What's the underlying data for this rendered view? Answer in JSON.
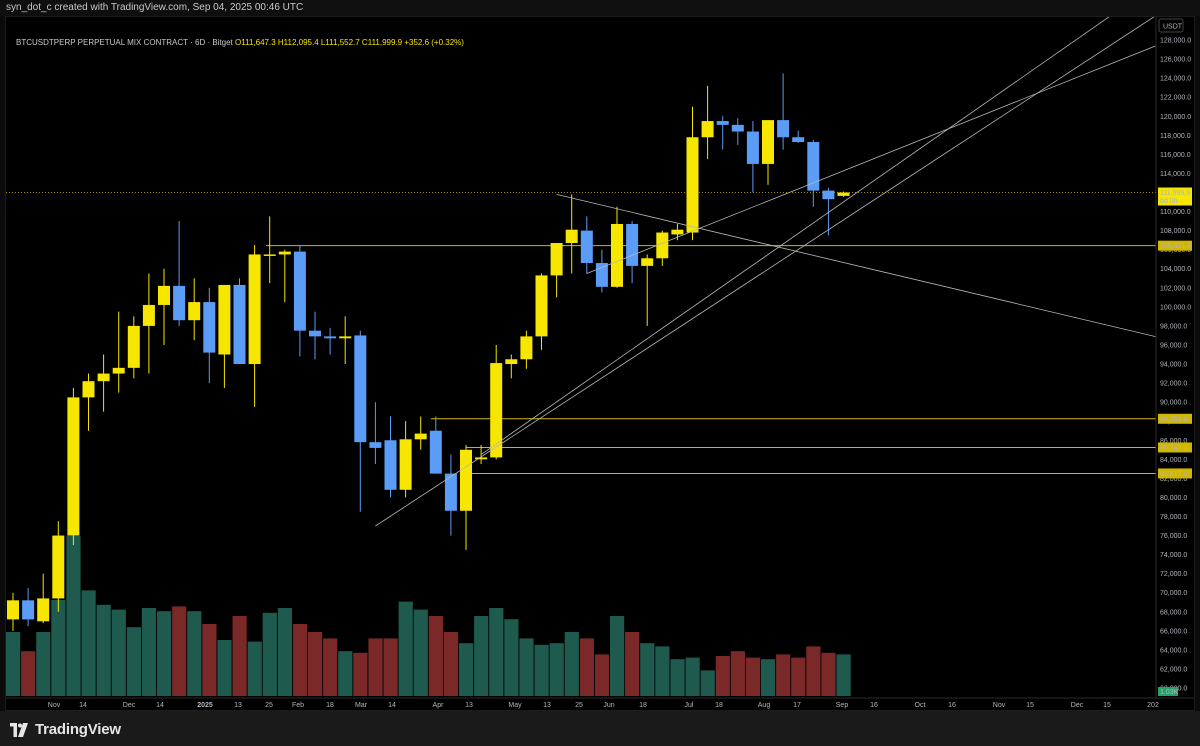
{
  "header": {
    "created_by": "syn_dot_c created with TradingView.com, Sep 04, 2025 00:46 UTC"
  },
  "legend": {
    "symbol": "BTCUSDTPERP PERPETUAL MIX CONTRACT · 6D · Bitget",
    "ohlc": "O111,647.3 H112,095.4 L111,552.7 C111,999.9 +352.6 (+0.32%)"
  },
  "footer": {
    "brand": "TradingView"
  },
  "colors": {
    "up": "#f6e600",
    "down": "#5b9cf6",
    "vol_up": "#1e5b4e",
    "vol_down": "#7a2828",
    "level": "#d2b700",
    "trend": "#b8b8b8"
  },
  "chart_data": {
    "type": "candlestick",
    "symbol": "BTCUSDTPERP",
    "interval": "6D",
    "exchange": "Bitget",
    "currency": "USDT",
    "ylim": [
      60000,
      130000
    ],
    "y_ticks": [
      60000,
      62000,
      64000,
      66000,
      68000,
      70000,
      72000,
      74000,
      76000,
      78000,
      80000,
      82000,
      84000,
      86000,
      88000,
      90000,
      92000,
      94000,
      96000,
      98000,
      100000,
      102000,
      104000,
      106000,
      108000,
      110000,
      112000,
      114000,
      116000,
      118000,
      120000,
      122000,
      124000,
      126000,
      128000
    ],
    "y_tick_labels": [
      "60,000.0",
      "62,000.0",
      "64,000.0",
      "66,000.0",
      "68,000.0",
      "70,000.0",
      "72,000.0",
      "74,000.0",
      "76,000.0",
      "78,000.0",
      "80,000.0",
      "82,000.0",
      "84,000.0",
      "86,000.0",
      "88,000.0",
      "90,000.0",
      "92,000.0",
      "94,000.0",
      "96,000.0",
      "98,000.0",
      "100,000.0",
      "102,000.0",
      "104,000.0",
      "106,000.0",
      "108,000.0",
      "110,000.0",
      "112,000.0",
      "114,000.0",
      "116,000.0",
      "118,000.0",
      "120,000.0",
      "122,000.0",
      "124,000.0",
      "126,000.0",
      "128,000.0"
    ],
    "x_labels": [
      "Nov",
      "14",
      "Dec",
      "14",
      "2025",
      "13",
      "25",
      "Feb",
      "18",
      "Mar",
      "14",
      "Apr",
      "13",
      "May",
      "13",
      "25",
      "Jun",
      "18",
      "Jul",
      "18",
      "Aug",
      "17",
      "Sep",
      "16",
      "Oct",
      "16",
      "Nov",
      "15",
      "Dec",
      "15",
      "202"
    ],
    "candles": [
      {
        "o": 67200,
        "h": 70000,
        "l": 66000,
        "c": 69200
      },
      {
        "o": 69200,
        "h": 70500,
        "l": 66500,
        "c": 67200
      },
      {
        "o": 67000,
        "h": 72000,
        "l": 66800,
        "c": 69400
      },
      {
        "o": 69400,
        "h": 77500,
        "l": 68000,
        "c": 76000
      },
      {
        "o": 76000,
        "h": 91500,
        "l": 75000,
        "c": 90500
      },
      {
        "o": 90500,
        "h": 93000,
        "l": 87000,
        "c": 92200
      },
      {
        "o": 92200,
        "h": 95000,
        "l": 89000,
        "c": 93000
      },
      {
        "o": 93000,
        "h": 99500,
        "l": 91000,
        "c": 93600
      },
      {
        "o": 93600,
        "h": 99000,
        "l": 92500,
        "c": 98000
      },
      {
        "o": 98000,
        "h": 103500,
        "l": 93000,
        "c": 100200
      },
      {
        "o": 100200,
        "h": 104000,
        "l": 96000,
        "c": 102200
      },
      {
        "o": 102200,
        "h": 109000,
        "l": 98000,
        "c": 98600
      },
      {
        "o": 98600,
        "h": 103000,
        "l": 96500,
        "c": 100500
      },
      {
        "o": 100500,
        "h": 102000,
        "l": 92000,
        "c": 95200
      },
      {
        "o": 95000,
        "h": 102000,
        "l": 91500,
        "c": 102300
      },
      {
        "o": 102300,
        "h": 103000,
        "l": 94000,
        "c": 94000
      },
      {
        "o": 94000,
        "h": 106500,
        "l": 89500,
        "c": 105500
      },
      {
        "o": 105500,
        "h": 109500,
        "l": 102500,
        "c": 105500
      },
      {
        "o": 105500,
        "h": 106000,
        "l": 100500,
        "c": 105800
      },
      {
        "o": 105800,
        "h": 106500,
        "l": 94800,
        "c": 97500
      },
      {
        "o": 97500,
        "h": 99500,
        "l": 94500,
        "c": 96900
      },
      {
        "o": 96900,
        "h": 97800,
        "l": 95000,
        "c": 96700
      },
      {
        "o": 96700,
        "h": 99000,
        "l": 94000,
        "c": 96900
      },
      {
        "o": 97000,
        "h": 97500,
        "l": 78500,
        "c": 85800
      },
      {
        "o": 85800,
        "h": 90000,
        "l": 83500,
        "c": 85200
      },
      {
        "o": 86000,
        "h": 88500,
        "l": 80000,
        "c": 80800
      },
      {
        "o": 80800,
        "h": 88000,
        "l": 80000,
        "c": 86100
      },
      {
        "o": 86100,
        "h": 88500,
        "l": 85000,
        "c": 86700
      },
      {
        "o": 87000,
        "h": 88500,
        "l": 82500,
        "c": 82500
      },
      {
        "o": 82500,
        "h": 84500,
        "l": 76000,
        "c": 78600
      },
      {
        "o": 78600,
        "h": 85500,
        "l": 74500,
        "c": 85000
      },
      {
        "o": 84000,
        "h": 85500,
        "l": 83500,
        "c": 84200
      },
      {
        "o": 84200,
        "h": 96000,
        "l": 84000,
        "c": 94100
      },
      {
        "o": 94000,
        "h": 95000,
        "l": 92500,
        "c": 94500
      },
      {
        "o": 94500,
        "h": 97500,
        "l": 93500,
        "c": 96900
      },
      {
        "o": 96900,
        "h": 103500,
        "l": 95500,
        "c": 103300
      },
      {
        "o": 103300,
        "h": 106500,
        "l": 101000,
        "c": 106700
      },
      {
        "o": 106700,
        "h": 111800,
        "l": 103500,
        "c": 108100
      },
      {
        "o": 108000,
        "h": 109500,
        "l": 103500,
        "c": 104600
      },
      {
        "o": 104600,
        "h": 106000,
        "l": 101500,
        "c": 102100
      },
      {
        "o": 102100,
        "h": 110500,
        "l": 102000,
        "c": 108700
      },
      {
        "o": 108700,
        "h": 109000,
        "l": 102500,
        "c": 104300
      },
      {
        "o": 104300,
        "h": 105500,
        "l": 98000,
        "c": 105100
      },
      {
        "o": 105100,
        "h": 108000,
        "l": 104300,
        "c": 107800
      },
      {
        "o": 107600,
        "h": 108700,
        "l": 107000,
        "c": 108100
      },
      {
        "o": 107800,
        "h": 121000,
        "l": 107000,
        "c": 117800
      },
      {
        "o": 117800,
        "h": 123200,
        "l": 115500,
        "c": 119500
      },
      {
        "o": 119500,
        "h": 120000,
        "l": 116500,
        "c": 119100
      },
      {
        "o": 119100,
        "h": 119800,
        "l": 117000,
        "c": 118400
      },
      {
        "o": 118400,
        "h": 119500,
        "l": 112000,
        "c": 115000
      },
      {
        "o": 115000,
        "h": 119500,
        "l": 112800,
        "c": 119600
      },
      {
        "o": 119600,
        "h": 124500,
        "l": 116500,
        "c": 117800
      },
      {
        "o": 117800,
        "h": 118500,
        "l": 117200,
        "c": 117300
      },
      {
        "o": 117300,
        "h": 117500,
        "l": 110500,
        "c": 112200
      },
      {
        "o": 112200,
        "h": 112500,
        "l": 107500,
        "c": 111300
      },
      {
        "o": 111647.3,
        "h": 112095.4,
        "l": 111552.7,
        "c": 111999.9
      }
    ],
    "volume_relative": [
      40,
      28,
      40,
      60,
      100,
      66,
      57,
      54,
      43,
      55,
      53,
      56,
      53,
      45,
      35,
      50,
      34,
      52,
      55,
      45,
      40,
      36,
      28,
      27,
      36,
      36,
      59,
      54,
      50,
      40,
      33,
      50,
      55,
      48,
      36,
      32,
      33,
      40,
      36,
      26,
      50,
      40,
      33,
      31,
      23,
      24,
      16,
      25,
      28,
      24,
      23,
      26,
      24,
      31,
      27,
      26
    ],
    "vol_ylim_relative": [
      0,
      100
    ],
    "current_price": {
      "value": 111999.9,
      "label": "111,999.9",
      "countdown": "6d 0h"
    },
    "horizontal_levels": [
      {
        "value": 106421.4,
        "label": "106,421.4"
      },
      {
        "value": 88253.9,
        "label": "88,253.9"
      },
      {
        "value": 85241.1,
        "label": "85,241.1"
      },
      {
        "value": 82517.4,
        "label": "82,517.4"
      }
    ],
    "trendlines": [
      {
        "from": {
          "candle": 24,
          "price": 77000
        },
        "to": {
          "candle": 79,
          "price": 134000
        }
      },
      {
        "from": {
          "candle": 31,
          "price": 84500
        },
        "to": {
          "candle": 74,
          "price": 132000
        }
      },
      {
        "from": {
          "candle": 38,
          "price": 103500
        },
        "to": {
          "candle": 79,
          "price": 129500
        }
      },
      {
        "from": {
          "candle": 36,
          "price": 111800
        },
        "to": {
          "candle": 78,
          "price": 96000
        }
      }
    ],
    "volume_label": "1.03K",
    "currency_label": "USDT"
  }
}
